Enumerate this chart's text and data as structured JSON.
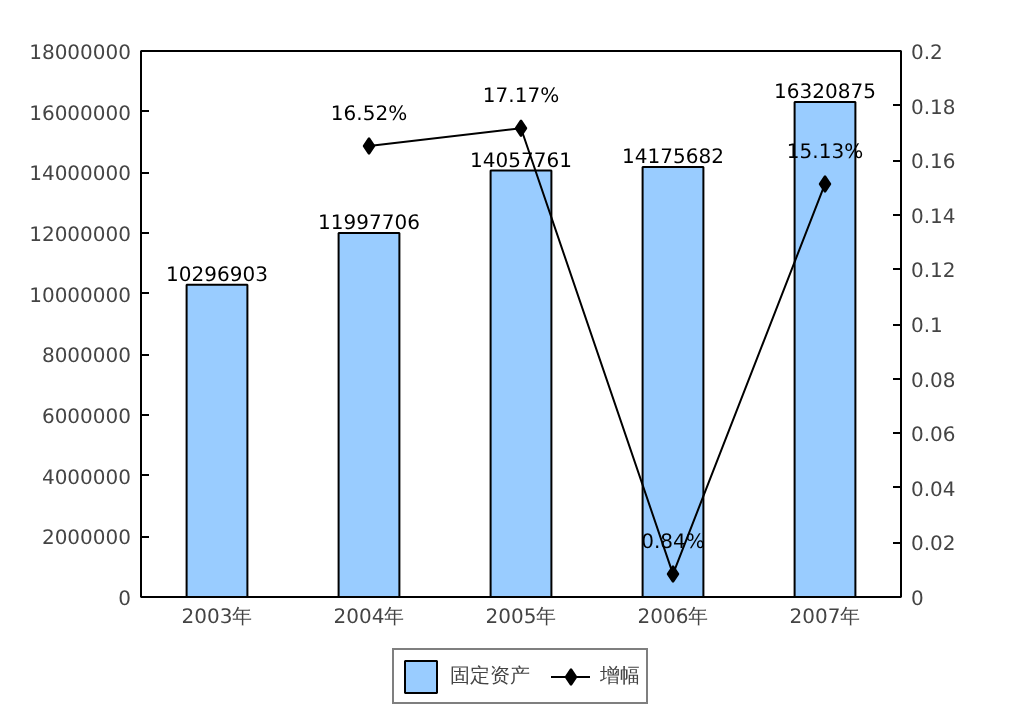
{
  "chart_data": {
    "type": "bar",
    "categories": [
      "2003年",
      "2004年",
      "2005年",
      "2006年",
      "2007年"
    ],
    "series": [
      {
        "name": "固定资产",
        "color": "#99ccff",
        "values": [
          10296903,
          11997706,
          14057761,
          14175682,
          16320875
        ]
      },
      {
        "name": "增幅",
        "type": "line",
        "axis": "y2",
        "color": "#000000",
        "marker": "diamond",
        "values": [
          null,
          0.1652,
          0.1717,
          0.0084,
          0.1513
        ],
        "value_labels": [
          null,
          "16.52%",
          "17.17%",
          "0.84%",
          "15.13%"
        ]
      }
    ],
    "data_labels": true,
    "ylim": [
      0,
      18000000
    ],
    "yticks": [
      0,
      2000000,
      4000000,
      6000000,
      8000000,
      10000000,
      12000000,
      14000000,
      16000000,
      18000000
    ],
    "y2lim": [
      0,
      0.2
    ],
    "y2ticks": [
      0,
      0.02,
      0.04,
      0.06,
      0.08,
      0.1,
      0.12,
      0.14,
      0.16,
      0.18,
      0.2
    ],
    "grid": false,
    "legend": "bottom"
  }
}
